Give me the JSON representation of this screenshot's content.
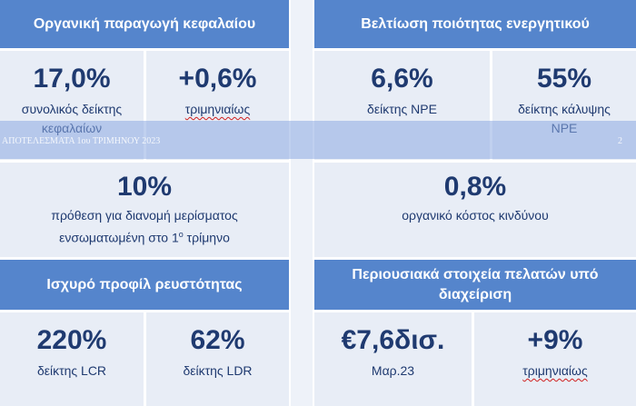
{
  "sections": [
    {
      "title": "Οργανική παραγωγή κεφαλαίου",
      "metrics": [
        {
          "value": "17,0%",
          "label": "συνολικός δείκτης κεφαλαίων"
        },
        {
          "value": "+0,6%",
          "label": "τριμηνιαίως"
        },
        {
          "value": "10%",
          "label": "πρόθεση για διανομή μερίσματος",
          "label_line2": "ενσωματωμένη στο 1",
          "label_sup": "ο",
          "label_end": "τρίμηνο"
        }
      ]
    },
    {
      "title": "Βελτίωση ποιότητας ενεργητικού",
      "metrics": [
        {
          "value": "6,6%",
          "label": "δείκτης NPE"
        },
        {
          "value": "55%",
          "label": "δείκτης κάλυψης NPE"
        },
        {
          "value": "0,8%",
          "label": "οργανικό κόστος κινδύνου"
        }
      ]
    },
    {
      "title": "Ισχυρό προφίλ ρευστότητας",
      "metrics": [
        {
          "value": "220%",
          "label": "δείκτης LCR"
        },
        {
          "value": "62%",
          "label": "δείκτης LDR"
        }
      ]
    },
    {
      "title": "Περιουσιακά στοιχεία πελατών υπό διαχείριση",
      "metrics": [
        {
          "value": "€7,6δισ.",
          "label": "Μαρ.23"
        },
        {
          "value": "+9%",
          "label": "τριμηνιαίως"
        }
      ]
    }
  ],
  "footer": {
    "text": "ΑΠΟΤΕΛΕΣΜΑΤΑ 1ου ΤΡΙΜΗΝΟΥ 2023",
    "page": "2"
  }
}
